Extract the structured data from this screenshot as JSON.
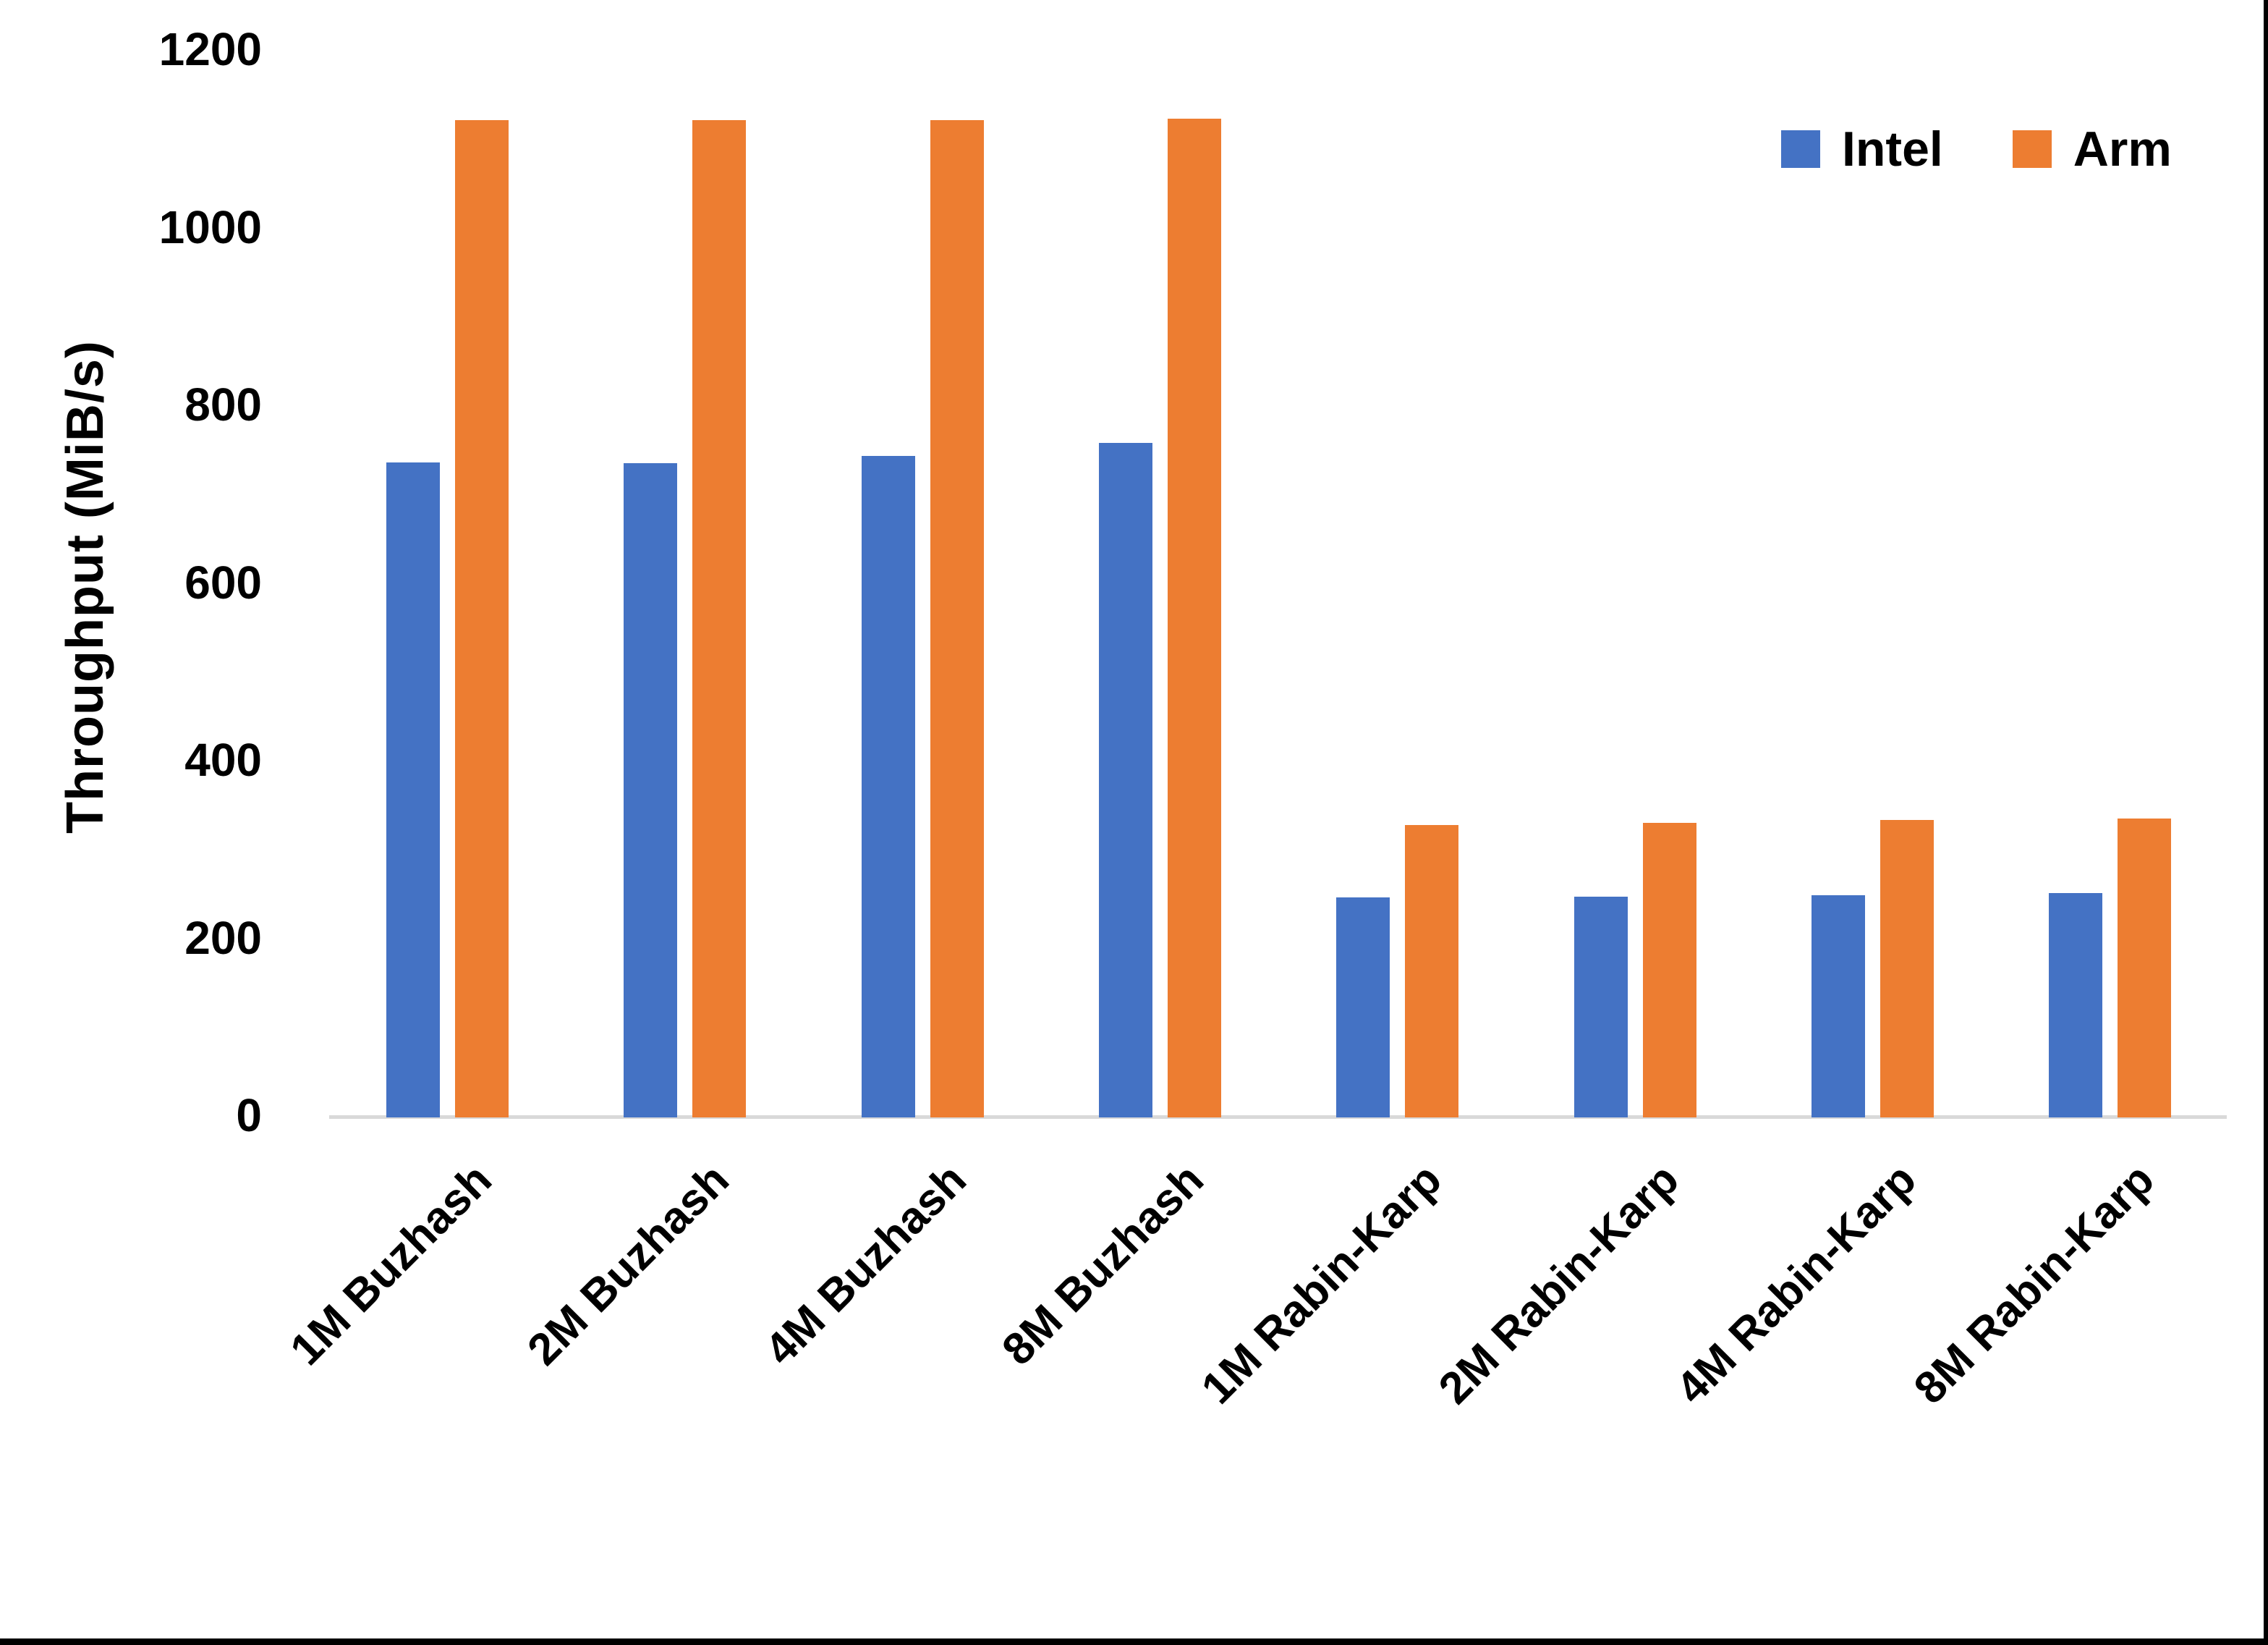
{
  "chart_data": {
    "type": "bar",
    "title": "",
    "xlabel": "",
    "ylabel": "Throughput (MiB/s)",
    "ylim": [
      0,
      1200
    ],
    "yticks": [
      0,
      200,
      400,
      600,
      800,
      1000,
      1200
    ],
    "grid": false,
    "legend_position": "top-right",
    "categories": [
      "1M Buzhash",
      "2M Buzhash",
      "4M Buzhash",
      "8M Buzhash",
      "1M Rabin-Karp",
      "2M Rabin-Karp",
      "4M Rabin-Karp",
      "8M Rabin-Karp"
    ],
    "series": [
      {
        "name": "Intel",
        "color": "#4472C4",
        "values": [
          735,
          734,
          742,
          757,
          245,
          246,
          248,
          250
        ]
      },
      {
        "name": "Arm",
        "color": "#ED7D31",
        "values": [
          1120,
          1120,
          1120,
          1122,
          327,
          329,
          332,
          334
        ]
      }
    ],
    "axis_line_color": "#D9D9D9",
    "text_color": "#000000"
  }
}
